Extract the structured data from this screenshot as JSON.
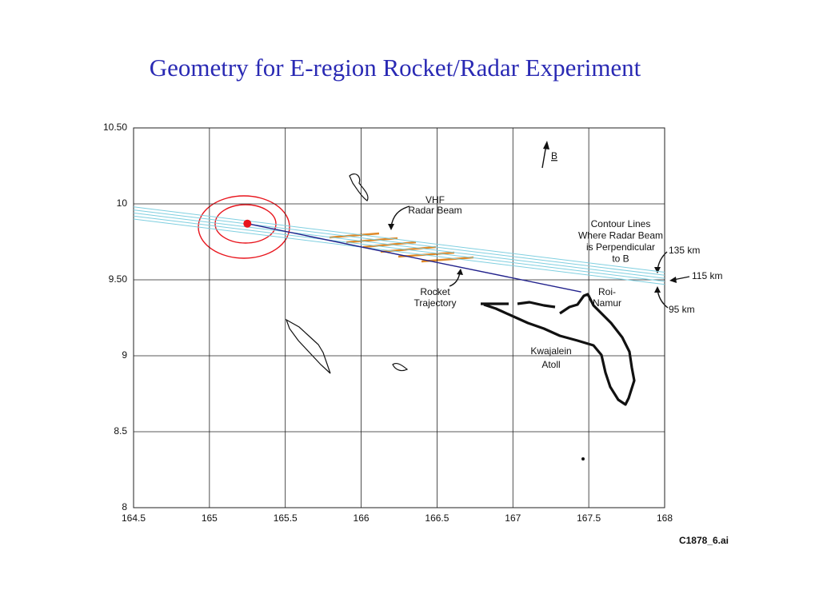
{
  "chart_data": {
    "type": "line",
    "title": "Geometry for E-region Rocket/Radar Experiment",
    "xlim": [
      164.5,
      168
    ],
    "ylim": [
      8,
      10.5
    ],
    "xticks": [
      164.5,
      165,
      165.5,
      166,
      166.5,
      167,
      167.5,
      168
    ],
    "yticks": [
      8,
      {
        "value": 8.5,
        "label": "8.5"
      },
      9,
      {
        "value": 9.5,
        "label": "9.50"
      },
      10,
      {
        "value": 10.5,
        "label": "10.50"
      }
    ],
    "grid": true,
    "series": [
      {
        "color": "#22228c",
        "x": [
          165.25,
          167.45
        ],
        "values": [
          9.87,
          9.42
        ]
      },
      {
        "color": "#7fcfe0",
        "x": [
          164.5,
          168
        ],
        "values": [
          9.98,
          9.55
        ]
      },
      {
        "color": "#7fcfe0",
        "x": [
          164.5,
          168
        ],
        "values": [
          9.96,
          9.53
        ]
      },
      {
        "color": "#7fcfe0",
        "x": [
          164.5,
          168
        ],
        "values": [
          9.94,
          9.51
        ]
      },
      {
        "color": "#7fcfe0",
        "x": [
          164.5,
          168
        ],
        "values": [
          9.92,
          9.49
        ]
      },
      {
        "color": "#7fcfe0",
        "x": [
          164.5,
          168
        ],
        "values": [
          9.9,
          9.47
        ]
      }
    ],
    "launch_point": {
      "x": 165.25,
      "y": 9.87,
      "color": "#e8141c"
    },
    "annotations": [
      {
        "lines": [
          "VHF",
          "Radar Beam"
        ]
      },
      {
        "lines": [
          "Contour Lines",
          "Where Radar Beam",
          "is Perpendicular",
          "to B"
        ]
      },
      {
        "lines": [
          "135 km"
        ]
      },
      {
        "lines": [
          "115 km"
        ]
      },
      {
        "lines": [
          "95 km"
        ]
      },
      {
        "lines": [
          "Rocket",
          "Trajectory"
        ]
      },
      {
        "lines": [
          "Roi-",
          "Namur"
        ]
      },
      {
        "lines": [
          "Kwajalein",
          "Atoll"
        ]
      },
      {
        "lines": [
          "B"
        ]
      },
      {
        "lines": [
          "C1878_6.ai"
        ]
      }
    ]
  }
}
